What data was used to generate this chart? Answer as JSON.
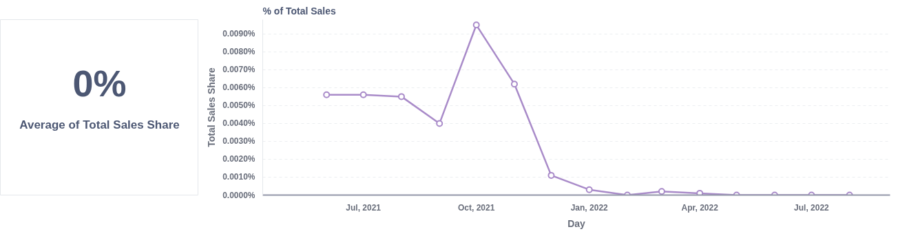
{
  "chart_data": [
    {
      "type": "other",
      "title": "0%",
      "subtitle": "Average of Total Sales Share"
    },
    {
      "type": "line",
      "title": "% of Total Sales",
      "xlabel": "Day",
      "ylabel": "Total Sales Share",
      "x": [
        "2021-06",
        "2021-07",
        "2021-08",
        "2021-09",
        "2021-10",
        "2021-11",
        "2021-12",
        "2022-01",
        "2022-02",
        "2022-03",
        "2022-04",
        "2022-05",
        "2022-06",
        "2022-07",
        "2022-08"
      ],
      "series": [
        {
          "color": "#a98bc9",
          "values": [
            0.0056,
            0.0056,
            0.0055,
            0.004,
            0.0095,
            0.0062,
            0.0011,
            0.0003,
            0.0,
            0.0002,
            0.0001,
            0.0,
            0.0,
            0.0,
            0.0
          ]
        }
      ],
      "xlim": [
        "2021-04-10",
        "2022-09-03"
      ],
      "xticks": [
        {
          "value": "2021-07",
          "label": "Jul, 2021"
        },
        {
          "value": "2021-10",
          "label": "Oct, 2021"
        },
        {
          "value": "2022-01",
          "label": "Jan, 2022"
        },
        {
          "value": "2022-04",
          "label": "Apr, 2022"
        },
        {
          "value": "2022-07",
          "label": "Jul, 2022"
        }
      ],
      "ylim": [
        0,
        0.0098
      ],
      "yticks": [
        {
          "value": 0,
          "label": "0.0000%"
        },
        {
          "value": 0.001,
          "label": "0.0010%"
        },
        {
          "value": 0.002,
          "label": "0.0020%"
        },
        {
          "value": 0.003,
          "label": "0.0030%"
        },
        {
          "value": 0.004,
          "label": "0.0040%"
        },
        {
          "value": 0.005,
          "label": "0.0050%"
        },
        {
          "value": 0.006,
          "label": "0.0060%"
        },
        {
          "value": 0.007,
          "label": "0.0070%"
        },
        {
          "value": 0.008,
          "label": "0.0080%"
        },
        {
          "value": 0.009,
          "label": "0.0090%"
        }
      ],
      "grid": "y",
      "marker": "circle",
      "line_style": "solid"
    }
  ]
}
